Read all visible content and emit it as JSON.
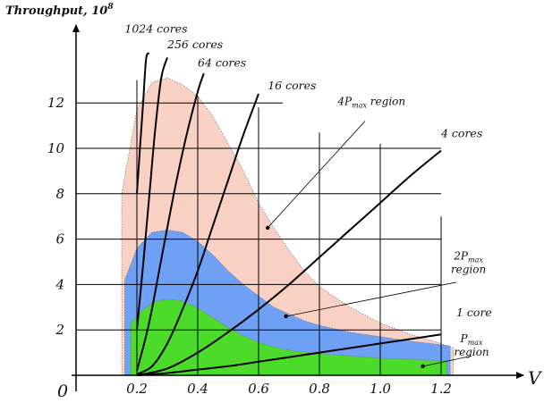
{
  "chart_data": {
    "type": "area",
    "title": "",
    "ylabel": "Throughput, 10",
    "ylabel_exponent": "8",
    "xlabel": "V",
    "origin_label": "0",
    "xlim": [
      0.0,
      1.28
    ],
    "ylim": [
      0,
      14.5
    ],
    "x_ticks": [
      0.2,
      0.4,
      0.6,
      0.8,
      1.0,
      1.2
    ],
    "x_tick_labels": [
      "0.2",
      "0.4",
      "0.6",
      "0.8",
      "1.0",
      "1.2"
    ],
    "y_ticks": [
      2,
      4,
      6,
      8,
      10,
      12
    ],
    "y_tick_labels": [
      "2",
      "4",
      "6",
      "8",
      "10",
      "12"
    ],
    "grid": true,
    "regions": [
      {
        "name": "4Pmax region",
        "label": "4P",
        "sub": "max",
        "suffix": " region",
        "color": "#f9d1c4",
        "x": [
          0.15,
          0.15,
          0.2,
          0.25,
          0.3,
          0.35,
          0.4,
          0.45,
          0.5,
          0.55,
          0.6,
          0.65,
          0.7,
          0.75,
          0.8,
          0.9,
          1.0,
          1.1,
          1.2,
          1.24,
          1.24
        ],
        "y": [
          0,
          8,
          11.7,
          12.9,
          13.1,
          12.8,
          12.3,
          11.4,
          10.2,
          9.0,
          7.6,
          6.5,
          5.5,
          4.6,
          3.9,
          3.0,
          2.3,
          1.8,
          1.4,
          1.2,
          0
        ]
      },
      {
        "name": "2Pmax region",
        "label": "2P",
        "sub": "max",
        "suffix": "region",
        "color": "#6ea0f5",
        "x": [
          0.16,
          0.16,
          0.2,
          0.25,
          0.3,
          0.35,
          0.4,
          0.45,
          0.5,
          0.55,
          0.6,
          0.65,
          0.7,
          0.75,
          0.8,
          0.9,
          1.0,
          1.1,
          1.2,
          1.23,
          1.23
        ],
        "y": [
          0,
          4.2,
          5.6,
          6.3,
          6.4,
          6.3,
          5.9,
          5.3,
          4.6,
          4.0,
          3.5,
          3.0,
          2.7,
          2.4,
          2.2,
          1.9,
          1.7,
          1.5,
          1.35,
          1.3,
          0
        ]
      },
      {
        "name": "Pmax region",
        "label": "P",
        "sub": "max",
        "suffix": "region",
        "color": "#4ddb2b",
        "x": [
          0.18,
          0.18,
          0.22,
          0.26,
          0.3,
          0.34,
          0.38,
          0.42,
          0.46,
          0.5,
          0.55,
          0.6,
          0.65,
          0.7,
          0.8,
          0.9,
          1.0,
          1.1,
          1.2,
          1.22,
          1.22
        ],
        "y": [
          0,
          2.3,
          2.9,
          3.25,
          3.35,
          3.3,
          3.1,
          2.8,
          2.45,
          2.1,
          1.75,
          1.45,
          1.25,
          1.1,
          0.95,
          0.85,
          0.75,
          0.7,
          0.65,
          0.65,
          0
        ]
      }
    ],
    "series": [
      {
        "name": "1024 cores",
        "x": [
          0.2,
          0.21,
          0.22,
          0.23,
          0.24
        ],
        "y": [
          8.0,
          10.0,
          11.9,
          13.9,
          14.2
        ]
      },
      {
        "name": "256 cores",
        "x": [
          0.2,
          0.22,
          0.24,
          0.26,
          0.28,
          0.3
        ],
        "y": [
          2.0,
          4.8,
          7.8,
          10.8,
          13.1,
          14.0
        ]
      },
      {
        "name": "64 cores",
        "x": [
          0.2,
          0.24,
          0.28,
          0.32,
          0.36,
          0.4,
          0.42
        ],
        "y": [
          0.2,
          2.3,
          5.1,
          7.9,
          10.4,
          12.5,
          13.3
        ]
      },
      {
        "name": "16 cores",
        "x": [
          0.2,
          0.25,
          0.3,
          0.35,
          0.4,
          0.45,
          0.5,
          0.55,
          0.6
        ],
        "y": [
          0.05,
          0.4,
          1.4,
          2.9,
          4.6,
          6.6,
          8.6,
          10.6,
          12.4
        ]
      },
      {
        "name": "4 cores",
        "x": [
          0.2,
          0.3,
          0.4,
          0.5,
          0.6,
          0.7,
          0.8,
          0.9,
          1.0,
          1.1,
          1.2
        ],
        "y": [
          0.0,
          0.3,
          1.0,
          1.9,
          2.9,
          4.0,
          5.2,
          6.4,
          7.6,
          8.8,
          9.9
        ]
      },
      {
        "name": "1 core",
        "x": [
          0.2,
          0.3,
          0.4,
          0.5,
          0.6,
          0.7,
          0.8,
          0.9,
          1.0,
          1.1,
          1.2
        ],
        "y": [
          0.0,
          0.1,
          0.25,
          0.4,
          0.6,
          0.8,
          1.0,
          1.2,
          1.4,
          1.6,
          1.8
        ]
      }
    ],
    "vertical_lines": [
      0.2,
      0.4,
      0.6,
      0.8,
      1.0,
      1.2
    ],
    "legend": "none"
  }
}
